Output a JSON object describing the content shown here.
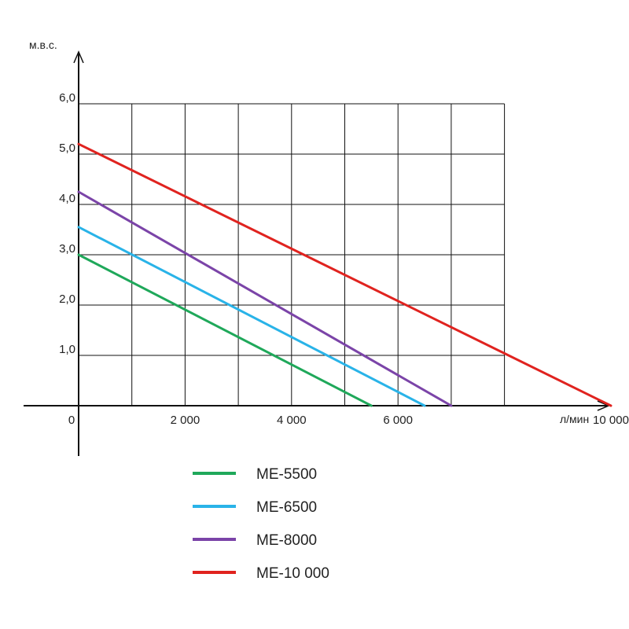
{
  "chart_data": {
    "type": "line",
    "xlabel": "л/мин",
    "ylabel": "м.в.с.",
    "xlim": [
      0,
      10000
    ],
    "ylim": [
      0,
      6
    ],
    "grid": true,
    "legend_placement": "bottom-center",
    "x_ticks": [
      {
        "value": 0,
        "label": "0"
      },
      {
        "value": 2000,
        "label": "2 000"
      },
      {
        "value": 4000,
        "label": "4 000"
      },
      {
        "value": 6000,
        "label": "6 000"
      },
      {
        "value": 10000,
        "label": "10 000"
      }
    ],
    "y_ticks": [
      {
        "value": 1,
        "label": "1,0"
      },
      {
        "value": 2,
        "label": "2,0"
      },
      {
        "value": 3,
        "label": "3,0"
      },
      {
        "value": 4,
        "label": "4,0"
      },
      {
        "value": 5,
        "label": "5,0"
      },
      {
        "value": 6,
        "label": "6,0"
      }
    ],
    "x_grid": [
      0,
      1000,
      2000,
      3000,
      4000,
      5000,
      6000,
      7000,
      8000
    ],
    "y_grid": [
      1,
      2,
      3,
      4,
      5,
      6
    ],
    "series": [
      {
        "name": "ME-5500",
        "color": "#1fa85a",
        "points": [
          [
            0,
            3.0
          ],
          [
            5500,
            0
          ]
        ]
      },
      {
        "name": "ME-6500",
        "color": "#29b3e8",
        "points": [
          [
            0,
            3.55
          ],
          [
            6500,
            0
          ]
        ]
      },
      {
        "name": "ME-8000",
        "color": "#7b44a8",
        "points": [
          [
            0,
            4.25
          ],
          [
            7000,
            0
          ]
        ]
      },
      {
        "name": "ME-10 000",
        "color": "#e0231f",
        "points": [
          [
            0,
            5.2
          ],
          [
            10000,
            0
          ]
        ]
      }
    ]
  }
}
